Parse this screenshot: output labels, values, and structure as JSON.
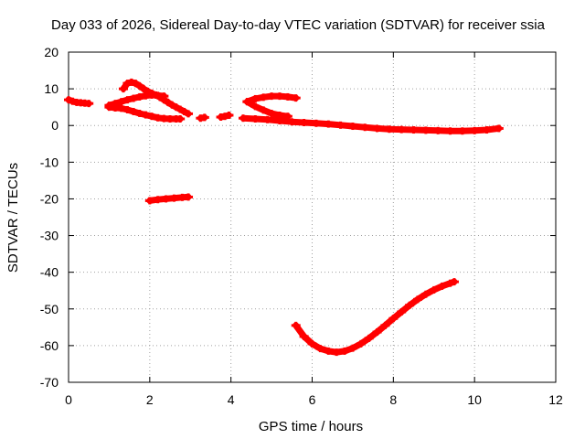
{
  "chart_data": {
    "type": "scatter",
    "title": "Day 033 of 2026, Sidereal Day-to-day VTEC variation (SDTVAR) for receiver ssia",
    "xlabel": "GPS time / hours",
    "ylabel": "SDTVAR / TECUs",
    "xlim": [
      0,
      12
    ],
    "ylim": [
      -70,
      20
    ],
    "xticks": [
      0,
      2,
      4,
      6,
      8,
      10,
      12
    ],
    "yticks": [
      20,
      10,
      0,
      -10,
      -20,
      -30,
      -40,
      -50,
      -60,
      -70
    ],
    "grid": true,
    "legend": "none",
    "marker_color": "#ff0000",
    "series": [
      {
        "x": [
          0.0,
          0.1,
          0.2,
          0.3,
          0.4,
          0.5
        ],
        "y": [
          7.0,
          6.6,
          6.3,
          6.2,
          6.1,
          6.0
        ]
      },
      {
        "x": [
          1.35,
          1.45,
          1.55,
          1.65,
          1.75,
          1.85,
          1.95,
          2.05,
          2.15,
          2.25,
          2.35,
          2.45,
          2.55,
          2.65,
          2.75,
          2.85,
          2.95
        ],
        "y": [
          10.0,
          11.5,
          11.8,
          11.5,
          10.8,
          10.0,
          9.3,
          8.8,
          8.3,
          7.7,
          7.0,
          6.3,
          5.6,
          5.0,
          4.4,
          3.8,
          3.2
        ]
      },
      {
        "x": [
          1.0,
          1.15,
          1.3,
          1.45,
          1.6,
          1.75,
          1.9,
          2.05,
          2.2,
          2.35
        ],
        "y": [
          5.5,
          6.0,
          6.5,
          7.0,
          7.4,
          7.8,
          8.1,
          8.3,
          8.2,
          8.0
        ]
      },
      {
        "x": [
          1.0,
          1.15,
          1.3,
          1.45,
          1.6,
          1.75,
          1.9,
          2.05,
          2.2,
          2.35,
          2.5,
          2.65,
          2.75
        ],
        "y": [
          5.0,
          4.8,
          4.7,
          4.3,
          3.8,
          3.3,
          2.9,
          2.5,
          2.1,
          1.9,
          1.8,
          1.8,
          1.8
        ]
      },
      {
        "x": [
          3.25,
          3.35
        ],
        "y": [
          2.0,
          2.2
        ]
      },
      {
        "x": [
          3.75,
          3.85,
          3.95
        ],
        "y": [
          2.3,
          2.5,
          2.8
        ]
      },
      {
        "x": [
          4.4,
          4.6,
          4.8,
          5.0,
          5.2,
          5.4,
          5.6
        ],
        "y": [
          6.5,
          7.3,
          7.7,
          8.0,
          8.0,
          7.8,
          7.5
        ]
      },
      {
        "x": [
          4.4,
          4.6,
          4.8,
          5.0,
          5.2,
          5.4
        ],
        "y": [
          6.5,
          5.2,
          4.2,
          3.3,
          2.8,
          2.5
        ]
      },
      {
        "x": [
          4.3,
          4.6,
          4.9,
          5.2,
          5.5,
          5.8,
          6.1,
          6.4,
          6.7,
          7.0,
          7.3,
          7.6,
          7.9,
          8.2,
          8.5,
          8.8,
          9.1,
          9.4,
          9.7,
          10.0,
          10.3,
          10.6
        ],
        "y": [
          2.0,
          1.8,
          1.6,
          1.3,
          1.0,
          0.8,
          0.6,
          0.4,
          0.1,
          -0.2,
          -0.5,
          -0.8,
          -1.0,
          -1.1,
          -1.2,
          -1.3,
          -1.4,
          -1.5,
          -1.5,
          -1.4,
          -1.2,
          -0.8
        ]
      },
      {
        "x": [
          2.0,
          2.2,
          2.4,
          2.6,
          2.8,
          2.95
        ],
        "y": [
          -20.5,
          -20.2,
          -20.0,
          -19.8,
          -19.6,
          -19.5
        ]
      },
      {
        "x": [
          5.6,
          5.8,
          6.0,
          6.2,
          6.4,
          6.6,
          6.8,
          7.0,
          7.2,
          7.4,
          7.6,
          7.8,
          8.0,
          8.2,
          8.4,
          8.6,
          8.8,
          9.0,
          9.2,
          9.4,
          9.5
        ],
        "y": [
          -54.5,
          -57.5,
          -59.5,
          -60.8,
          -61.5,
          -61.8,
          -61.5,
          -60.7,
          -59.5,
          -58.0,
          -56.3,
          -54.5,
          -52.6,
          -50.8,
          -49.0,
          -47.4,
          -46.0,
          -44.8,
          -43.8,
          -43.0,
          -42.6
        ]
      }
    ]
  }
}
